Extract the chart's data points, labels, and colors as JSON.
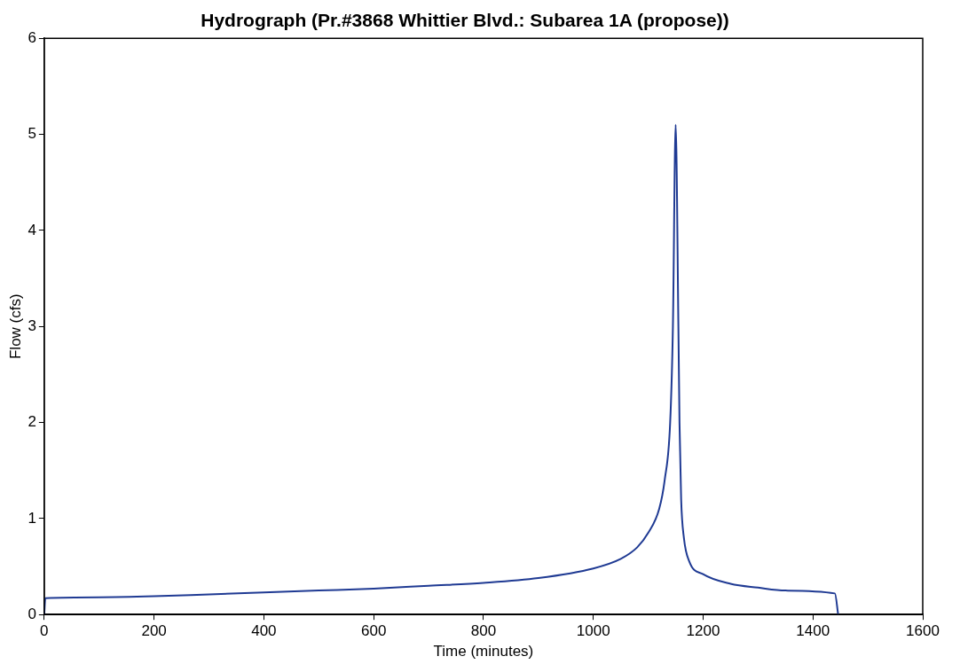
{
  "chart_data": {
    "type": "line",
    "title": "Hydrograph (Pr.#3868 Whittier Blvd.: Subarea 1A (propose))",
    "xlabel": "Time (minutes)",
    "ylabel": "Flow (cfs)",
    "x": [
      0,
      2,
      100,
      200,
      300,
      400,
      500,
      600,
      700,
      800,
      900,
      1000,
      1050,
      1080,
      1100,
      1120,
      1130,
      1140,
      1145,
      1150,
      1155,
      1157,
      1160,
      1165,
      1175,
      1200,
      1250,
      1300,
      1350,
      1440,
      1446
    ],
    "series": [
      {
        "color": "#1f3a93",
        "values": [
          0,
          0.17,
          0.18,
          0.19,
          0.21,
          0.23,
          0.25,
          0.27,
          0.3,
          0.33,
          0.38,
          0.48,
          0.58,
          0.7,
          0.85,
          1.1,
          1.4,
          2.0,
          3.0,
          5.1,
          3.0,
          2.0,
          1.2,
          0.8,
          0.55,
          0.42,
          0.32,
          0.28,
          0.25,
          0.22,
          0
        ]
      }
    ],
    "xlim": [
      0,
      1600
    ],
    "xticks": [
      0,
      200,
      400,
      600,
      800,
      1000,
      1200,
      1400,
      1600
    ],
    "ylim": [
      0,
      6
    ],
    "yticks": [
      0,
      1,
      2,
      3,
      4,
      5,
      6
    ],
    "grid": false,
    "legend": false,
    "marker": "none",
    "line_style": "solid"
  }
}
